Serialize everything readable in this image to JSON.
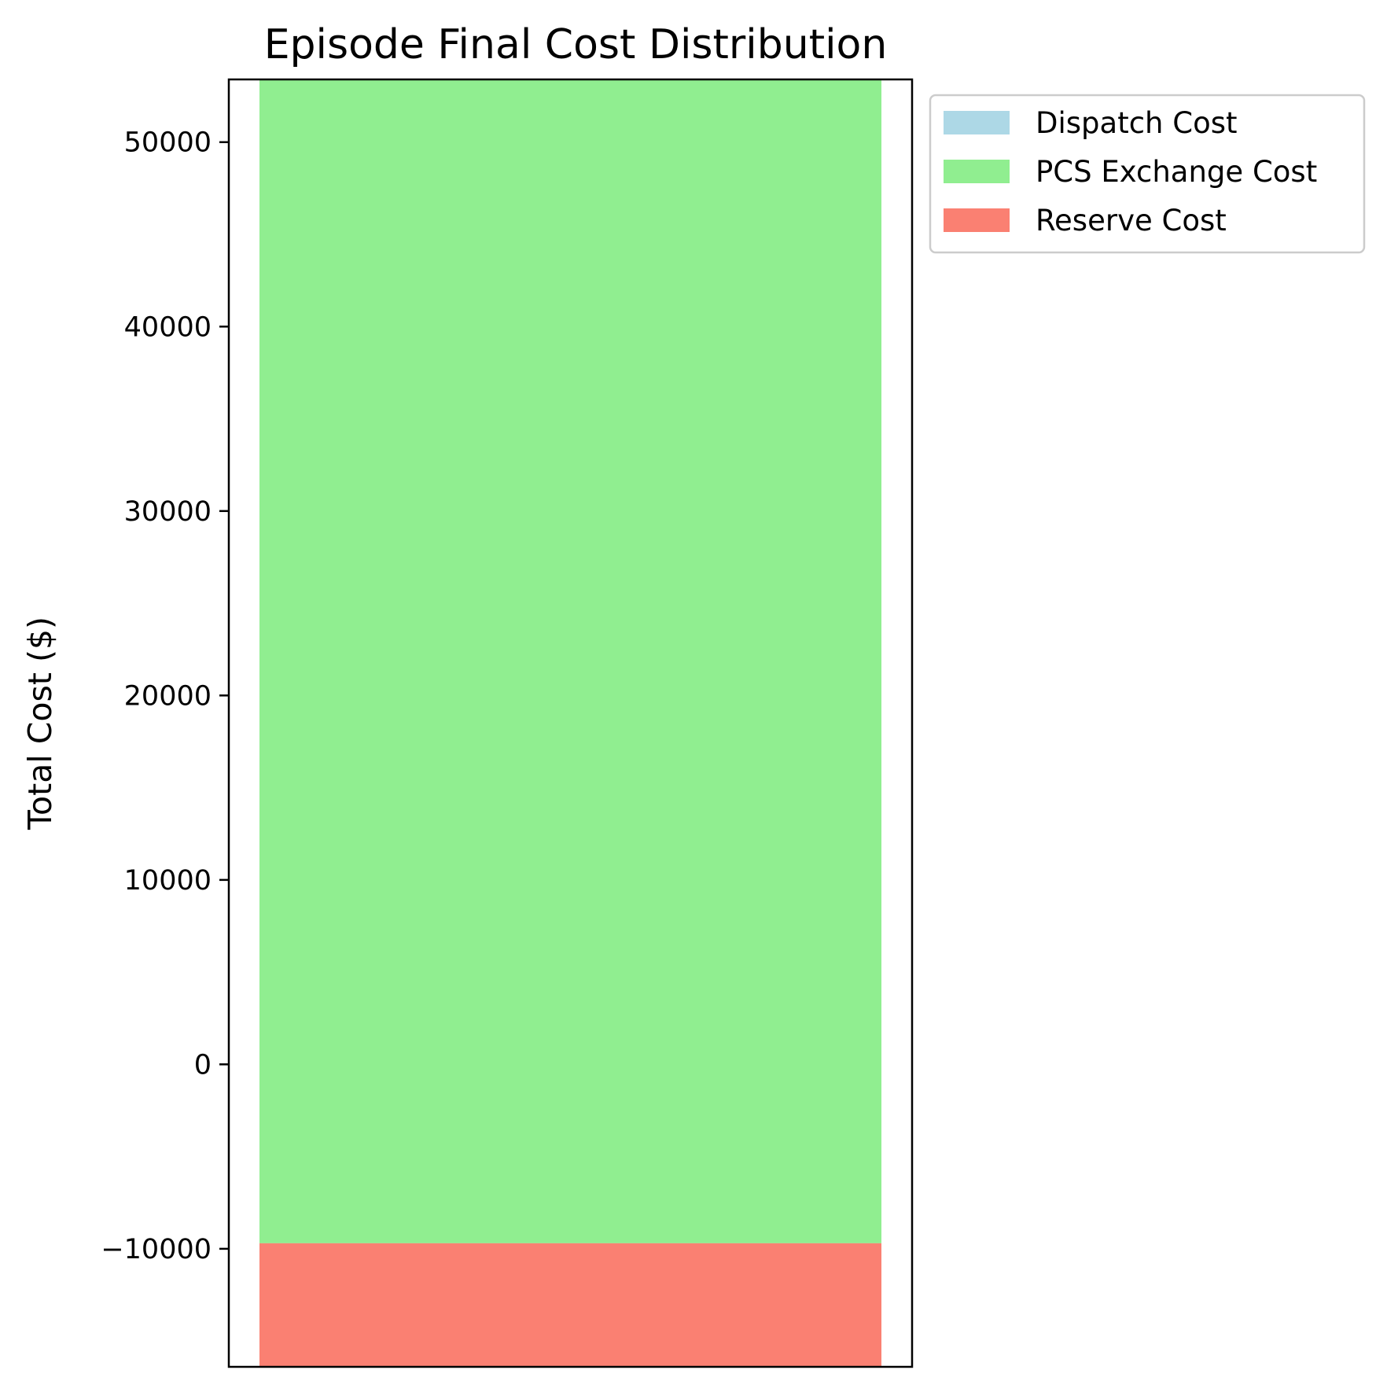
{
  "chart_data": {
    "type": "bar",
    "stacked": true,
    "title": "Episode Final Cost Distribution",
    "xlabel": "",
    "ylabel": "Total Cost ($)",
    "ylim": [
      -16400,
      53400
    ],
    "yticks": [
      -10000,
      0,
      10000,
      20000,
      30000,
      40000,
      50000
    ],
    "ytick_labels": [
      "−10000",
      "0",
      "10000",
      "20000",
      "30000",
      "40000",
      "50000"
    ],
    "categories": [
      ""
    ],
    "grid": false,
    "legend_position": "upper-right-outside",
    "series": [
      {
        "name": "Dispatch Cost",
        "color": "#add8e6",
        "segments": [
          [
            53400,
            53400
          ]
        ]
      },
      {
        "name": "PCS Exchange Cost",
        "color": "#90ee90",
        "segments": [
          [
            -9700,
            53400
          ]
        ]
      },
      {
        "name": "Reserve Cost",
        "color": "#fa8072",
        "segments": [
          [
            -16400,
            -9700
          ]
        ]
      }
    ]
  }
}
